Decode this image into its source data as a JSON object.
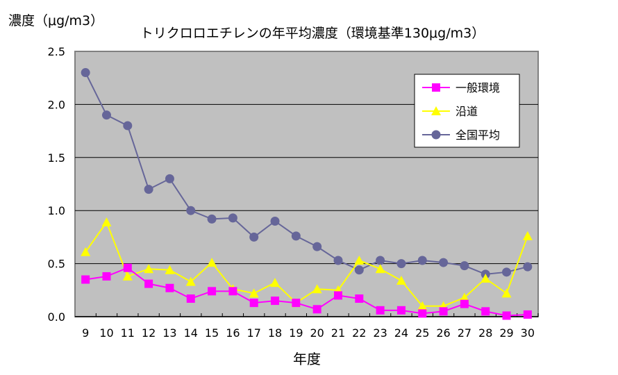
{
  "chart_data": {
    "type": "line",
    "title": "トリクロロエチレンの年平均濃度（環境基準130μg/m3）",
    "ylabel": "濃度（μg/m3）",
    "xlabel": "年度",
    "ylim": [
      0,
      2.5
    ],
    "yticks": [
      "0.0",
      "0.5",
      "1.0",
      "1.5",
      "2.0",
      "2.5"
    ],
    "grid": true,
    "legend_position": "top-right",
    "categories": [
      "9",
      "10",
      "11",
      "12",
      "13",
      "14",
      "15",
      "16",
      "17",
      "18",
      "19",
      "20",
      "21",
      "22",
      "23",
      "24",
      "25",
      "26",
      "27",
      "28",
      "29",
      "30"
    ],
    "series": [
      {
        "name": "一般環境",
        "color": "#ff00ff",
        "marker": "square",
        "values": [
          0.35,
          0.38,
          0.46,
          0.31,
          0.27,
          0.17,
          0.24,
          0.24,
          0.13,
          0.15,
          0.13,
          0.07,
          0.2,
          0.17,
          0.06,
          0.06,
          0.03,
          0.05,
          0.12,
          0.05,
          0.01,
          0.02
        ]
      },
      {
        "name": "沿道",
        "color": "#ffff00",
        "marker": "triangle",
        "values": [
          0.61,
          0.89,
          0.38,
          0.45,
          0.44,
          0.33,
          0.51,
          0.26,
          0.22,
          0.32,
          0.13,
          0.26,
          0.25,
          0.53,
          0.45,
          0.34,
          0.1,
          0.1,
          0.18,
          0.36,
          0.22,
          0.76
        ]
      },
      {
        "name": "全国平均",
        "color": "#666699",
        "marker": "circle",
        "values": [
          2.3,
          1.9,
          1.8,
          1.2,
          1.3,
          1.0,
          0.92,
          0.93,
          0.75,
          0.9,
          0.76,
          0.66,
          0.53,
          0.44,
          0.53,
          0.5,
          0.53,
          0.51,
          0.48,
          0.4,
          0.42,
          0.47
        ]
      }
    ]
  }
}
